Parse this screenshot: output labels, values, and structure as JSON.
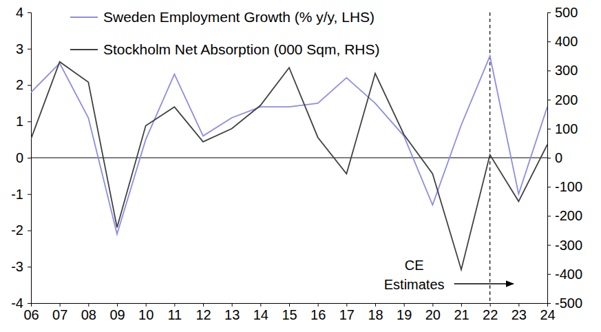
{
  "chart_data": {
    "type": "line",
    "categories": [
      "06",
      "07",
      "08",
      "09",
      "10",
      "11",
      "12",
      "13",
      "14",
      "15",
      "16",
      "17",
      "18",
      "19",
      "20",
      "21",
      "22",
      "23",
      "24"
    ],
    "series": [
      {
        "name": "Sweden Employment Growth (% y/y, LHS)",
        "color": "#8c8ce6",
        "axis": "y",
        "values": [
          1.8,
          2.6,
          1.1,
          -2.1,
          0.5,
          2.3,
          0.6,
          1.1,
          1.4,
          1.4,
          1.5,
          2.2,
          1.5,
          0.6,
          -1.3,
          0.9,
          2.8,
          -1.0,
          1.4
        ]
      },
      {
        "name": "Stockholm Net Absorption (000 Sqm, RHS)",
        "color": "#404040",
        "axis": "y2",
        "values": [
          65,
          330,
          260,
          -240,
          110,
          175,
          55,
          100,
          180,
          310,
          70,
          -55,
          290,
          80,
          -55,
          -385,
          10,
          -150,
          45
        ]
      }
    ],
    "ylim": [
      -4,
      4
    ],
    "yticks": [
      -4,
      -3,
      -2,
      -1,
      0,
      1,
      2,
      3,
      4
    ],
    "y2lim": [
      -500,
      500
    ],
    "y2ticks": [
      -500,
      -400,
      -300,
      -200,
      -100,
      0,
      100,
      200,
      300,
      400,
      500
    ],
    "legend": "top-left",
    "grid": false,
    "annotations": [
      {
        "text": "CE Estimates",
        "x": "22"
      }
    ]
  }
}
